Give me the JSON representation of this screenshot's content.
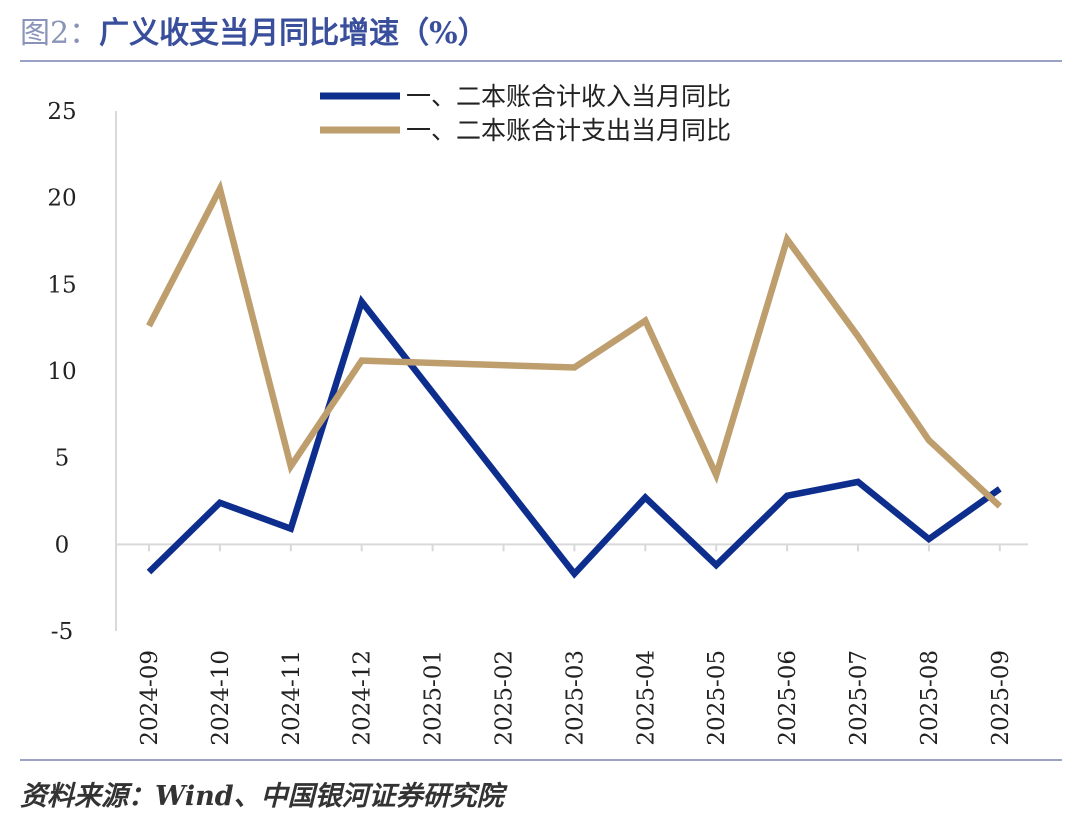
{
  "header": {
    "figure_label": "图2：",
    "title": "广义收支当月同比增速（%）"
  },
  "footer": {
    "source": "资料来源：Wind、中国银河证券研究院"
  },
  "colors": {
    "income": "#0e2e8e",
    "expenditure": "#bf9e6e",
    "axis": "#d9d9d9",
    "rule": "#9aa3c4"
  },
  "chart_data": {
    "type": "line",
    "title": "广义收支当月同比增速（%）",
    "xlabel": "",
    "ylabel": "",
    "ylim": [
      -5,
      25
    ],
    "yticks": [
      25,
      20,
      15,
      10,
      5,
      0,
      -5
    ],
    "categories": [
      "2024-09",
      "2024-10",
      "2024-11",
      "2024-12",
      "2025-01",
      "2025-02",
      "2025-03",
      "2025-04",
      "2025-05",
      "2025-06",
      "2025-07",
      "2025-08",
      "2025-09"
    ],
    "legend_position": "top",
    "series": [
      {
        "name": "一、二本账合计收入当月同比",
        "key": "income",
        "values": [
          -1.6,
          2.4,
          0.9,
          14.0,
          null,
          null,
          -1.7,
          2.7,
          -1.2,
          2.8,
          3.6,
          0.3,
          3.2
        ]
      },
      {
        "name": "一、二本账合计支出当月同比",
        "key": "expenditure",
        "values": [
          12.6,
          20.5,
          4.5,
          10.6,
          null,
          null,
          10.2,
          12.9,
          4.0,
          17.6,
          12.0,
          6.0,
          2.2
        ]
      }
    ]
  }
}
